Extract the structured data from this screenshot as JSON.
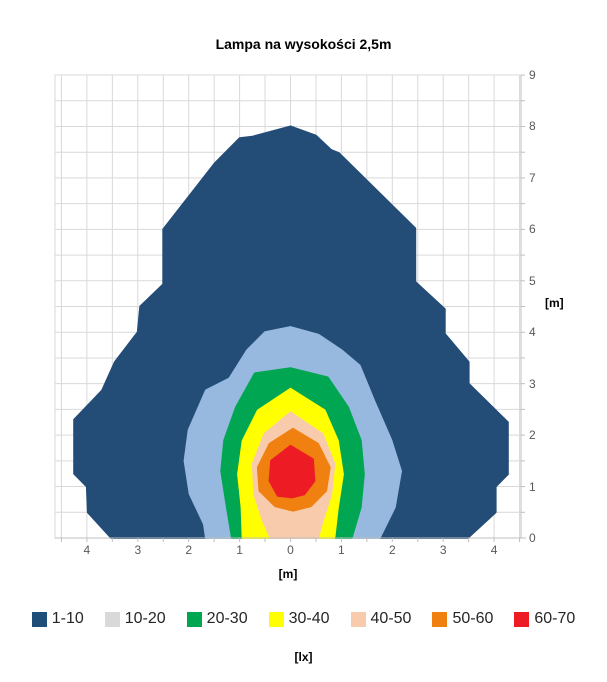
{
  "chart_data": {
    "type": "filled-contour",
    "title": "Lampa na wysokości 2,5m",
    "xlabel": "[m]",
    "ylabel": "[m]",
    "legend_title": "[lx]",
    "x_range": [
      -4.65,
      4.55
    ],
    "y_range": [
      0,
      9
    ],
    "grid_step": 0.5,
    "grid_on": true,
    "x_tick_labels": [
      "4",
      "3",
      "2",
      "1",
      "0",
      "1",
      "2",
      "3",
      "4"
    ],
    "x_tick_positions": [
      -4,
      -3,
      -2,
      -1,
      0,
      1,
      2,
      3,
      4
    ],
    "y_tick_labels": [
      "0",
      "1",
      "2",
      "3",
      "4",
      "5",
      "6",
      "7",
      "8",
      "9"
    ],
    "y_tick_positions": [
      0,
      1,
      2,
      3,
      4,
      5,
      6,
      7,
      8,
      9
    ],
    "colors": {
      "grid": "#d9d9d9",
      "axis": "#bfbfbf",
      "tick_text": "#595959",
      "title_text": "#000000"
    },
    "legend": [
      {
        "label": "1-10",
        "swatch": "#1f4e79"
      },
      {
        "label": "10-20",
        "swatch": "#d9d9d9"
      },
      {
        "label": "20-30",
        "swatch": "#00a651"
      },
      {
        "label": "30-40",
        "swatch": "#ffff00"
      },
      {
        "label": "40-50",
        "swatch": "#f8cbad"
      },
      {
        "label": "50-60",
        "swatch": "#f0800f"
      },
      {
        "label": "60-70",
        "swatch": "#ed1c24"
      }
    ],
    "bands": [
      {
        "range": "1-10",
        "fill": "#234c77",
        "points": [
          [
            -3.52,
            0
          ],
          [
            -3.98,
            0.5
          ],
          [
            -4.0,
            1.0
          ],
          [
            -4.25,
            1.25
          ],
          [
            -4.25,
            2.3
          ],
          [
            -3.7,
            2.87
          ],
          [
            -3.45,
            3.42
          ],
          [
            -3.0,
            4.0
          ],
          [
            -2.95,
            4.5
          ],
          [
            -2.5,
            4.93
          ],
          [
            -2.5,
            6.0
          ],
          [
            -1.49,
            7.28
          ],
          [
            -1.0,
            7.77
          ],
          [
            -0.75,
            7.8
          ],
          [
            0,
            8.0
          ],
          [
            0.5,
            7.82
          ],
          [
            0.8,
            7.54
          ],
          [
            0.95,
            7.48
          ],
          [
            2.45,
            6.02
          ],
          [
            2.45,
            4.98
          ],
          [
            3.03,
            4.45
          ],
          [
            3.03,
            3.97
          ],
          [
            3.5,
            3.42
          ],
          [
            3.5,
            3.0
          ],
          [
            4.27,
            2.25
          ],
          [
            4.27,
            1.24
          ],
          [
            4.03,
            1.0
          ],
          [
            4.03,
            0.5
          ],
          [
            3.48,
            0
          ]
        ]
      },
      {
        "range": "10-20",
        "fill": "#97b9df",
        "points": [
          [
            -1.66,
            0
          ],
          [
            -1.7,
            0.27
          ],
          [
            -1.98,
            0.86
          ],
          [
            -2.08,
            1.5
          ],
          [
            -2.0,
            2.1
          ],
          [
            -1.66,
            2.87
          ],
          [
            -1.2,
            3.1
          ],
          [
            -0.85,
            3.65
          ],
          [
            -0.5,
            4.0
          ],
          [
            0,
            4.1
          ],
          [
            0.55,
            3.95
          ],
          [
            1.0,
            3.65
          ],
          [
            1.36,
            3.35
          ],
          [
            1.65,
            2.65
          ],
          [
            1.98,
            1.9
          ],
          [
            2.17,
            1.3
          ],
          [
            2.05,
            0.6
          ],
          [
            1.75,
            0
          ]
        ]
      },
      {
        "range": "20-30",
        "fill": "#00a651",
        "points": [
          [
            -1.15,
            0
          ],
          [
            -1.26,
            0.66
          ],
          [
            -1.36,
            1.3
          ],
          [
            -1.3,
            1.9
          ],
          [
            -1.07,
            2.54
          ],
          [
            -0.7,
            3.2
          ],
          [
            0,
            3.3
          ],
          [
            0.73,
            3.12
          ],
          [
            1.13,
            2.54
          ],
          [
            1.38,
            1.9
          ],
          [
            1.44,
            1.24
          ],
          [
            1.38,
            0.6
          ],
          [
            1.2,
            0
          ]
        ]
      },
      {
        "range": "30-40",
        "fill": "#ffff00",
        "points": [
          [
            -0.94,
            0
          ],
          [
            -0.96,
            0.6
          ],
          [
            -1.03,
            1.24
          ],
          [
            -0.94,
            1.89
          ],
          [
            -0.64,
            2.48
          ],
          [
            0,
            2.9
          ],
          [
            0.67,
            2.48
          ],
          [
            0.93,
            1.89
          ],
          [
            1.03,
            1.24
          ],
          [
            0.93,
            0.59
          ],
          [
            0.86,
            0
          ]
        ]
      },
      {
        "range": "40-50",
        "fill": "#f8cbad",
        "points": [
          [
            -0.39,
            0
          ],
          [
            -0.54,
            0.33
          ],
          [
            -0.71,
            0.85
          ],
          [
            -0.74,
            1.44
          ],
          [
            -0.51,
            2.02
          ],
          [
            0,
            2.44
          ],
          [
            0.63,
            2.02
          ],
          [
            0.86,
            1.44
          ],
          [
            0.8,
            0.85
          ],
          [
            0.63,
            0.33
          ],
          [
            0.54,
            0
          ]
        ]
      },
      {
        "range": "50-60",
        "fill": "#f0800f",
        "points": [
          [
            0.05,
            0.53
          ],
          [
            -0.3,
            0.62
          ],
          [
            -0.61,
            0.92
          ],
          [
            -0.64,
            1.37
          ],
          [
            -0.41,
            1.83
          ],
          [
            0.05,
            2.12
          ],
          [
            0.54,
            1.83
          ],
          [
            0.77,
            1.37
          ],
          [
            0.7,
            0.92
          ],
          [
            0.4,
            0.62
          ]
        ]
      },
      {
        "range": "60-70",
        "fill": "#ed1c24",
        "points": [
          [
            0.03,
            0.79
          ],
          [
            -0.25,
            0.82
          ],
          [
            -0.41,
            1.11
          ],
          [
            -0.38,
            1.5
          ],
          [
            0,
            1.79
          ],
          [
            0.44,
            1.53
          ],
          [
            0.47,
            1.11
          ],
          [
            0.27,
            0.85
          ]
        ]
      }
    ]
  }
}
